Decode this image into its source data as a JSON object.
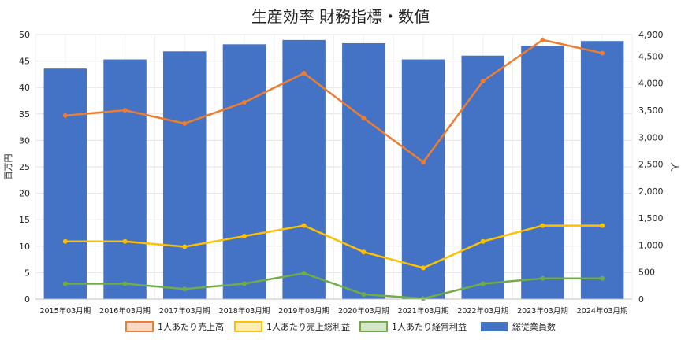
{
  "chart_data": {
    "type": "bar",
    "title": "生産効率 財務指標・数値",
    "categories": [
      "2015年03月期",
      "2016年03月期",
      "2017年03月期",
      "2018年03月期",
      "2019年03月期",
      "2020年03月期",
      "2021年03月期",
      "2022年03月期",
      "2023年03月期",
      "2024年03月期"
    ],
    "left_axis": {
      "label": "百万円",
      "range": [
        0,
        50
      ],
      "ticks": [
        "0",
        "5",
        "10",
        "15",
        "20",
        "25",
        "30",
        "35",
        "40",
        "45",
        "50"
      ]
    },
    "right_axis": {
      "label": "人",
      "range": [
        0,
        4900
      ],
      "ticks": [
        "0",
        "500",
        "1,000",
        "1,500",
        "2,000",
        "2,500",
        "3,000",
        "3,500",
        "4,000",
        "4,500",
        "4,900"
      ]
    },
    "series": [
      {
        "name": "1人あたり売上高",
        "type": "line",
        "axis": "left",
        "color": "#ED7D31",
        "values": [
          34.7,
          35.7,
          33.2,
          37.2,
          42.7,
          34.2,
          25.9,
          41.2,
          49.0,
          46.5
        ]
      },
      {
        "name": "1人あたり売上総利益",
        "type": "line",
        "axis": "left",
        "color": "#FFC000",
        "values": [
          10.9,
          10.9,
          9.9,
          11.9,
          13.9,
          8.9,
          5.9,
          10.9,
          13.9,
          13.9
        ]
      },
      {
        "name": "1人あたり経常利益",
        "type": "line",
        "axis": "left",
        "color": "#70AD47",
        "values": [
          2.9,
          2.9,
          1.9,
          2.9,
          4.9,
          0.9,
          0.1,
          2.9,
          3.9,
          3.9
        ]
      },
      {
        "name": "総従業員数",
        "type": "bar",
        "axis": "right",
        "color": "#4472C4",
        "values": [
          4270,
          4440,
          4590,
          4720,
          4800,
          4740,
          4440,
          4510,
          4690,
          4780
        ]
      }
    ],
    "legend_position": "bottom",
    "grid": true
  }
}
